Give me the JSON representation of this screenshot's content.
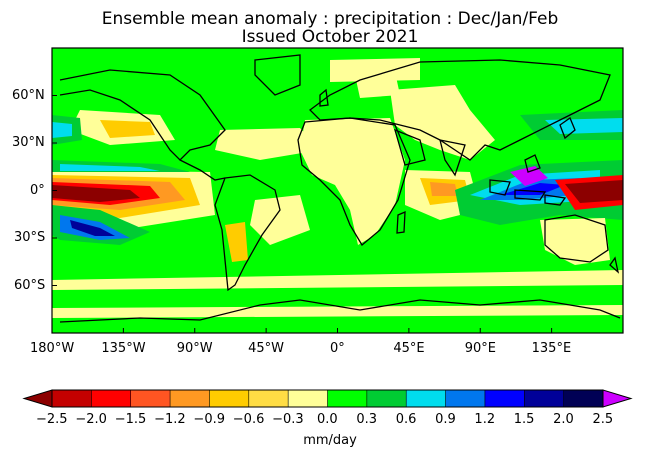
{
  "title_line1": "Ensemble mean anomaly : precipitation : Dec/Jan/Feb",
  "title_line2": "Issued October 2021",
  "lon_ticks": [
    "180°W",
    "135°W",
    "90°W",
    "45°W",
    "0°",
    "45°E",
    "90°E",
    "135°E"
  ],
  "lat_ticks": [
    "60°N",
    "30°N",
    "0°",
    "30°S",
    "60°S"
  ],
  "colorbar": {
    "units": "mm/day",
    "tick_labels": [
      "−2.5",
      "−2.0",
      "−1.5",
      "−1.2",
      "−0.9",
      "−0.6",
      "−0.3",
      "0.0",
      "0.3",
      "0.6",
      "0.9",
      "1.2",
      "1.5",
      "2.0",
      "2.5"
    ],
    "low_extend_color": "#8c0000",
    "high_extend_color": "#cc00ff",
    "colors": [
      "#c40000",
      "#ff0000",
      "#ff5522",
      "#ff9922",
      "#ffcc00",
      "#ffdd44",
      "#ffff99",
      "#00ff00",
      "#00cc33",
      "#00ddee",
      "#0077ee",
      "#0000ff",
      "#000099",
      "#000055"
    ]
  },
  "palette": {
    "zero": "#00ff00",
    "dry_weak": "#ffff99",
    "dry_mid": "#ffcc00",
    "dry_strong": "#ff9922",
    "dry_stronger": "#ff0000",
    "dry_max": "#8c0000",
    "wet_weak": "#00cc33",
    "wet_mid": "#00ddee",
    "wet_strong": "#0077ee",
    "wet_stronger": "#0000ff",
    "wet_max": "#000099",
    "wet_extreme": "#cc00ff"
  }
}
